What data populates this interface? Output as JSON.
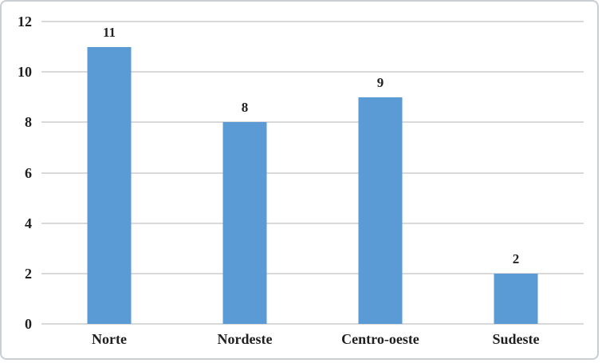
{
  "colors": {
    "bar_fill": "#5b9bd5",
    "gridline": "#d9d9d9",
    "border": "#c9ced2",
    "text": "#1f1f1f",
    "background": "#ffffff"
  },
  "chart_data": {
    "type": "bar",
    "categories": [
      "Norte",
      "Nordeste",
      "Centro-oeste",
      "Sudeste"
    ],
    "values": [
      11,
      8,
      9,
      2
    ],
    "data_labels": [
      "11",
      "8",
      "9",
      "2"
    ],
    "yticks": [
      0,
      2,
      4,
      6,
      8,
      10,
      12
    ],
    "ytick_labels": [
      "0",
      "2",
      "4",
      "6",
      "8",
      "10",
      "12"
    ],
    "ylim": [
      0,
      12
    ],
    "title": "",
    "xlabel": "",
    "ylabel": "",
    "grid": true,
    "legend": "none",
    "data_labels_shown": true
  }
}
